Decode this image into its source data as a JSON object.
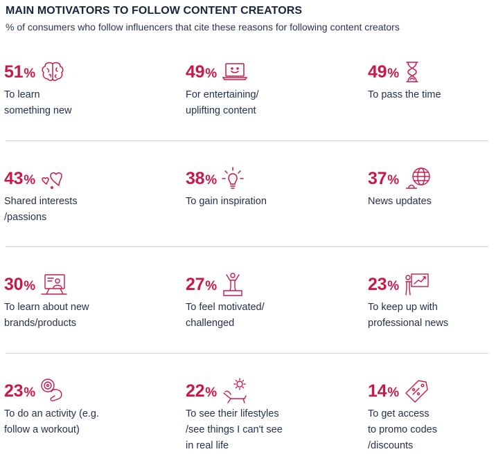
{
  "title": "MAIN MOTIVATORS TO FOLLOW CONTENT CREATORS",
  "subtitle": "% of consumers who follow influencers that cite these reasons for following content creators",
  "colors": {
    "accent": "#c8194a",
    "text": "#253050",
    "divider": "#cfd3da"
  },
  "chart_data": {
    "type": "table",
    "title": "MAIN MOTIVATORS TO FOLLOW CONTENT CREATORS",
    "unit": "%",
    "items": [
      {
        "value": "51",
        "label": "To learn\nsomething new",
        "icon": "brain-icon"
      },
      {
        "value": "49",
        "label": "For entertaining/\nuplifting content",
        "icon": "laptop-smile-icon"
      },
      {
        "value": "49",
        "label": "To pass the time",
        "icon": "hourglass-icon"
      },
      {
        "value": "43",
        "label": "Shared interests\n/passions",
        "icon": "hearts-icon"
      },
      {
        "value": "38",
        "label": "To gain inspiration",
        "icon": "lightbulb-icon"
      },
      {
        "value": "37",
        "label": "News updates",
        "icon": "globe-icon"
      },
      {
        "value": "30",
        "label": "To learn about new\nbrands/products",
        "icon": "presenter-screen-icon"
      },
      {
        "value": "27",
        "label": "To feel motivated/\nchallenged",
        "icon": "winner-podium-icon"
      },
      {
        "value": "23",
        "label": "To keep up with\nprofessional news",
        "icon": "growth-board-icon"
      },
      {
        "value": "23",
        "label": "To do an activity (e.g.\nfollow a workout)",
        "icon": "workout-icon"
      },
      {
        "value": "22",
        "label": "To see their lifestyles\n/see things I can't see\nin real life",
        "icon": "sun-lounger-icon"
      },
      {
        "value": "14",
        "label": "To get access\nto promo codes\n/discounts",
        "icon": "discount-tag-icon"
      }
    ]
  }
}
